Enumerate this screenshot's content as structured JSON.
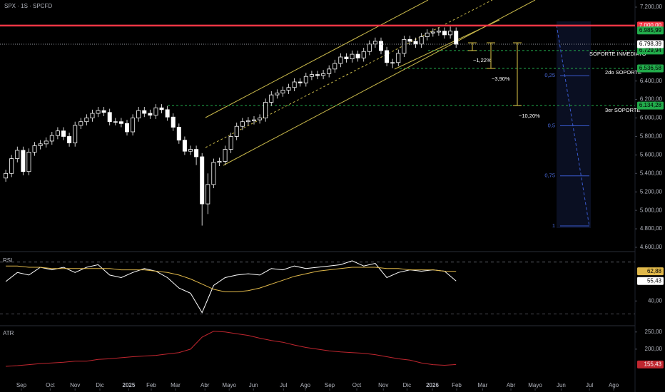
{
  "chart_data": {
    "type": "candlestick",
    "title": "SPX · 1S · SPCFD",
    "xlim": [
      -1,
      109
    ],
    "ylim": [
      4600,
      7200
    ],
    "yticks": [
      {
        "value": 7200,
        "label": "7.200,00"
      },
      {
        "value": 6400,
        "label": "6.400,00"
      },
      {
        "value": 6200,
        "label": "6.200,00"
      },
      {
        "value": 6000,
        "label": "6.000,00"
      },
      {
        "value": 5800,
        "label": "5.800,00"
      },
      {
        "value": 5600,
        "label": "5.600,00"
      },
      {
        "value": 5400,
        "label": "5.400,00"
      },
      {
        "value": 5200,
        "label": "5.200,00"
      },
      {
        "value": 5000,
        "label": "5.000,00"
      },
      {
        "value": 4800,
        "label": "4.800,00"
      },
      {
        "value": 4600,
        "label": "4.600,00"
      }
    ],
    "xticks": [
      {
        "value": 2.7,
        "label": "Sep"
      },
      {
        "value": 7.7,
        "label": "Oct"
      },
      {
        "value": 12,
        "label": "Nov"
      },
      {
        "value": 16.3,
        "label": "Dic"
      },
      {
        "value": 21.3,
        "label": "2025"
      },
      {
        "value": 25.2,
        "label": "Feb"
      },
      {
        "value": 29.4,
        "label": "Mar"
      },
      {
        "value": 34.5,
        "label": "Abr"
      },
      {
        "value": 38.7,
        "label": "Mayo"
      },
      {
        "value": 42.9,
        "label": "Jun"
      },
      {
        "value": 48.1,
        "label": "Jul"
      },
      {
        "value": 51.9,
        "label": "Ago"
      },
      {
        "value": 56.1,
        "label": "Sep"
      },
      {
        "value": 60.8,
        "label": "Oct"
      },
      {
        "value": 65.4,
        "label": "Nov"
      },
      {
        "value": 69.5,
        "label": "Dic"
      },
      {
        "value": 73.9,
        "label": "2026"
      },
      {
        "value": 78.1,
        "label": "Feb"
      },
      {
        "value": 82.6,
        "label": "Mar"
      },
      {
        "value": 87.5,
        "label": "Abr"
      },
      {
        "value": 91.7,
        "label": "Mayo"
      },
      {
        "value": 96.2,
        "label": "Jun"
      },
      {
        "value": 101.1,
        "label": "Jul"
      },
      {
        "value": 105.3,
        "label": "Ago"
      }
    ],
    "up_color": "#ffffff",
    "down_color": "#ffffff",
    "open": [
      5350,
      5400,
      5560,
      5650,
      5420,
      5630,
      5700,
      5720,
      5750,
      5810,
      5860,
      5800,
      5730,
      5920,
      5960,
      6000,
      6050,
      6080,
      6060,
      5960,
      5960,
      5940,
      5850,
      6000,
      6080,
      6050,
      6030,
      6110,
      6090,
      6010,
      5900,
      5760,
      5640,
      5660,
      5580,
      5070,
      5280,
      5520,
      5530,
      5660,
      5800,
      5910,
      5960,
      5970,
      5980,
      6000,
      6170,
      6250,
      6270,
      6300,
      6330,
      6390,
      6380,
      6450,
      6470,
      6460,
      6480,
      6530,
      6590,
      6660,
      6640,
      6690,
      6650,
      6720,
      6800,
      6830,
      6730,
      6600,
      6600,
      6700,
      6850,
      6830,
      6800,
      6880,
      6920,
      6930,
      6940,
      6900,
      6940
    ],
    "high": [
      5440,
      5600,
      5690,
      5690,
      5670,
      5740,
      5760,
      5790,
      5850,
      5900,
      5900,
      5840,
      5960,
      6000,
      6040,
      6090,
      6120,
      6120,
      6100,
      6000,
      6000,
      5980,
      6040,
      6120,
      6120,
      6090,
      6150,
      6150,
      6130,
      6050,
      5940,
      5800,
      5700,
      5700,
      5620,
      5400,
      5560,
      5570,
      5700,
      5840,
      5950,
      6000,
      6010,
      6020,
      6040,
      6210,
      6290,
      6310,
      6340,
      6370,
      6430,
      6430,
      6490,
      6510,
      6510,
      6520,
      6570,
      6630,
      6700,
      6700,
      6730,
      6730,
      6760,
      6840,
      6870,
      6870,
      6770,
      6640,
      6740,
      6890,
      6890,
      6870,
      6920,
      6960,
      6970,
      6980,
      6980,
      6990,
      6980
    ],
    "low": [
      5310,
      5360,
      5520,
      5380,
      5380,
      5590,
      5660,
      5680,
      5710,
      5770,
      5760,
      5690,
      5690,
      5880,
      5920,
      5960,
      6010,
      6020,
      5920,
      5920,
      5900,
      5810,
      5810,
      5960,
      6010,
      5990,
      5990,
      6050,
      5970,
      5860,
      5720,
      5600,
      5600,
      5490,
      4835,
      4960,
      5240,
      5480,
      5490,
      5620,
      5760,
      5870,
      5920,
      5930,
      5940,
      5960,
      6130,
      6210,
      6230,
      6260,
      6290,
      6340,
      6340,
      6410,
      6420,
      6420,
      6440,
      6490,
      6550,
      6600,
      6600,
      6610,
      6610,
      6680,
      6760,
      6690,
      6560,
      6540,
      6560,
      6660,
      6790,
      6760,
      6760,
      6840,
      6880,
      6890,
      6860,
      6860,
      6760
    ],
    "close": [
      5400,
      5560,
      5650,
      5420,
      5630,
      5700,
      5720,
      5750,
      5810,
      5860,
      5800,
      5730,
      5920,
      5960,
      6000,
      6050,
      6080,
      6060,
      5960,
      5960,
      5940,
      5850,
      6000,
      6080,
      6050,
      6030,
      6110,
      6090,
      6010,
      5900,
      5760,
      5640,
      5660,
      5580,
      5070,
      5280,
      5520,
      5530,
      5660,
      5800,
      5910,
      5960,
      5970,
      5980,
      6000,
      6170,
      6250,
      6270,
      6300,
      6330,
      6390,
      6380,
      6450,
      6470,
      6460,
      6480,
      6530,
      6590,
      6660,
      6640,
      6690,
      6650,
      6720,
      6800,
      6830,
      6730,
      6600,
      6600,
      6700,
      6850,
      6830,
      6800,
      6880,
      6920,
      6930,
      6940,
      6900,
      6940,
      6798.39
    ],
    "price_lines": [
      {
        "value": 7000,
        "label": "7.000,00",
        "color": "#f23645"
      },
      {
        "value": 6985.99,
        "label": "6.985,99",
        "color": "#22ab4b"
      },
      {
        "value": 6798.39,
        "label": "6.798,39",
        "color": "#ffffff"
      }
    ],
    "supports": [
      {
        "name": "SOPORTE INMEDIATO",
        "value": 6729.94,
        "label": "6.729,94"
      },
      {
        "name": "2do SOPORTE",
        "value": 6536.58,
        "label": "6.536,58"
      },
      {
        "name": "3er SOPORTE",
        "value": 6134.28,
        "label": "6.134,28"
      }
    ],
    "support_color": "#22ab4b",
    "drawdowns": [
      {
        "value": -1.22,
        "label": "−1,22%"
      },
      {
        "value": -3.9,
        "label": "−3,90%"
      },
      {
        "value": -10.2,
        "label": "−10,20%"
      }
    ],
    "fib_levels": [
      {
        "value": 0.25,
        "label": "0,25"
      },
      {
        "value": 0.5,
        "label": "0,5"
      },
      {
        "value": 0.75,
        "label": "0,75"
      },
      {
        "value": 1,
        "label": "1"
      }
    ],
    "rsi": {
      "label": "RSI",
      "ylim": [
        22,
        77
      ],
      "yticks": [
        {
          "value": 40,
          "label": "40,00"
        }
      ],
      "bands": [
        70,
        30
      ],
      "x": [
        0,
        2,
        4,
        6,
        8,
        10,
        12,
        14,
        16,
        18,
        20,
        22,
        24,
        26,
        28,
        30,
        32,
        34,
        36,
        38,
        40,
        42,
        44,
        46,
        48,
        50,
        52,
        54,
        56,
        58,
        60,
        62,
        64,
        66,
        68,
        70,
        72,
        74,
        76,
        78
      ],
      "series": [
        {
          "color": "#ffffff",
          "values": [
            55,
            62,
            60,
            66,
            64,
            66,
            62,
            66,
            68,
            60,
            58,
            62,
            65,
            63,
            58,
            50,
            46,
            31,
            52,
            58,
            60,
            61,
            60,
            65,
            64,
            67,
            65,
            66,
            67,
            68,
            71,
            67,
            69,
            58,
            62,
            64,
            63,
            64,
            63,
            55.43
          ],
          "last": {
            "value": 55.43,
            "label": "55,43"
          }
        },
        {
          "color": "#e0b84a",
          "values": [
            67,
            67,
            66,
            66,
            65,
            65,
            65,
            65,
            65,
            65,
            64,
            64,
            64,
            63,
            62,
            60,
            57,
            53,
            49,
            47,
            47,
            48,
            50,
            53,
            56,
            59,
            61,
            63,
            64,
            65,
            66,
            66,
            66,
            65,
            65,
            64,
            64,
            64,
            63,
            62.88
          ],
          "last": {
            "value": 62.88,
            "label": "62,88"
          }
        }
      ]
    },
    "atr": {
      "label": "ATR",
      "ylim": [
        96,
        262
      ],
      "yticks": [
        {
          "value": 250,
          "label": "250,00"
        },
        {
          "value": 200,
          "label": "200,00"
        }
      ],
      "color": "#c0262f",
      "x": [
        0,
        2,
        4,
        6,
        8,
        10,
        12,
        14,
        16,
        18,
        20,
        22,
        24,
        26,
        28,
        30,
        32,
        34,
        36,
        38,
        40,
        42,
        44,
        46,
        48,
        50,
        52,
        54,
        56,
        58,
        60,
        62,
        64,
        66,
        68,
        70,
        72,
        74,
        76,
        78
      ],
      "values": [
        150,
        152,
        155,
        158,
        160,
        162,
        165,
        165,
        170,
        172,
        175,
        178,
        180,
        182,
        186,
        190,
        200,
        235,
        252,
        250,
        245,
        240,
        232,
        225,
        220,
        212,
        205,
        200,
        195,
        192,
        190,
        188,
        184,
        178,
        172,
        168,
        160,
        155,
        153,
        155.43
      ],
      "last": {
        "value": 155.43,
        "label": "155,43"
      }
    }
  }
}
